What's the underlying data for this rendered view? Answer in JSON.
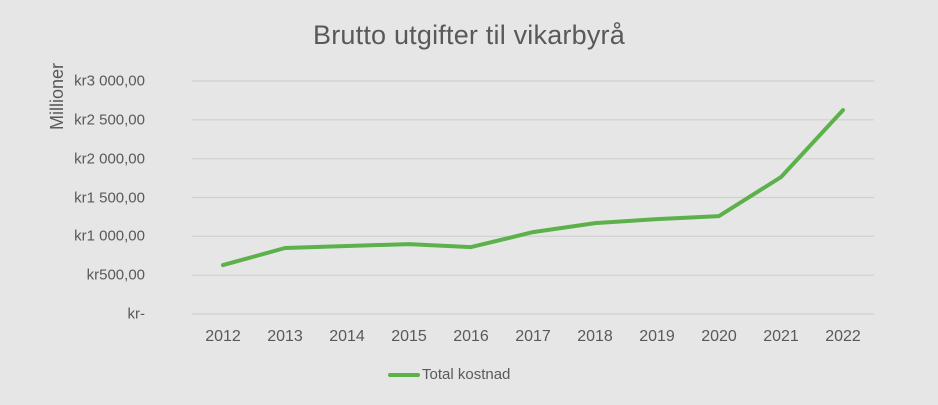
{
  "chart_data": {
    "type": "line",
    "title": "Brutto utgifter til vikarbyrå",
    "xlabel": "",
    "ylabel": "Millioner",
    "categories": [
      "2012",
      "2013",
      "2014",
      "2015",
      "2016",
      "2017",
      "2018",
      "2019",
      "2020",
      "2021",
      "2022"
    ],
    "series": [
      {
        "name": "Total kostnad",
        "color": "#5cb14a",
        "values": [
          630,
          850,
          875,
          900,
          862,
          1055,
          1170,
          1222,
          1261,
          1763,
          2625
        ]
      }
    ],
    "ylim": [
      0,
      3000
    ],
    "yticks": [
      0,
      500,
      1000,
      1500,
      2000,
      2500,
      3000
    ],
    "ytick_labels": [
      "kr-",
      "kr500,00",
      "kr1 000,00",
      "kr1 500,00",
      "kr2 000,00",
      "kr2 500,00",
      "kr3 000,00"
    ],
    "grid": true,
    "legend_position": "bottom"
  },
  "colors": {
    "background": "#e6e6e6",
    "text": "#595959",
    "grid": "#d0d0d0",
    "line": "#5cb14a"
  }
}
